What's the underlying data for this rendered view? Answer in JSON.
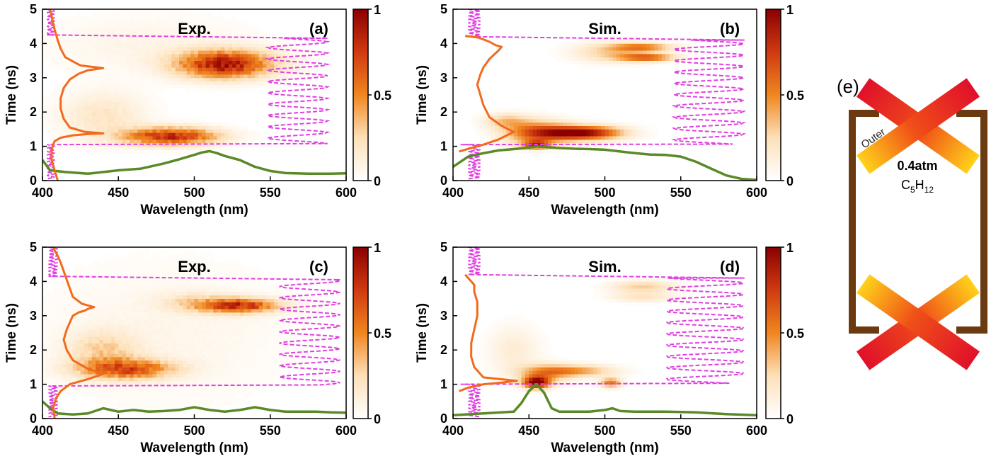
{
  "colors": {
    "heat_low": "#ffffff",
    "heat_mid": "#f0861f",
    "heat_high": "#8b0000",
    "vertical_profile": "#f26a1b",
    "spectrum_line": "#5a8a28",
    "dashed_profile": "#e040e0",
    "box_wall": "#6b3a10",
    "beam_red": "#e0102a",
    "beam_yellow": "#ffd21a"
  },
  "axes": {
    "xlabel": "Wavelength (nm)",
    "ylabel": "Time (ns)",
    "x_ticks": [
      "400",
      "450",
      "500",
      "550",
      "600"
    ],
    "y_ticks": [
      "0",
      "1",
      "2",
      "3",
      "4",
      "5"
    ],
    "colorbar_ticks": [
      "0",
      "0.5",
      "1"
    ]
  },
  "diagram": {
    "label": "(e)",
    "pressure": "0.4atm",
    "gas_main": "C",
    "gas_sub1": "5",
    "gas_mid": "H",
    "gas_sub2": "12",
    "beam_label": "Outer"
  },
  "chart_data": [
    {
      "type": "heatmap",
      "panel": "(a)",
      "title": "Exp.",
      "xlabel": "Wavelength (nm)",
      "ylabel": "Time (ns)",
      "xlim": [
        400,
        600
      ],
      "ylim": [
        0,
        5
      ],
      "colorbar": {
        "range": [
          0,
          1
        ],
        "ticks": [
          0,
          0.5,
          1
        ]
      },
      "blobs": [
        {
          "x": 485,
          "y": 1.3,
          "sx": 22,
          "sy": 0.18,
          "v": 0.8
        },
        {
          "x": 520,
          "y": 3.4,
          "sx": 22,
          "sy": 0.28,
          "v": 0.9
        },
        {
          "x": 440,
          "y": 1.9,
          "sx": 20,
          "sy": 0.5,
          "v": 0.2
        },
        {
          "x": 470,
          "y": 4.0,
          "sx": 50,
          "sy": 0.6,
          "v": 0.08
        }
      ],
      "noise": 0.3,
      "vertical_profile": {
        "x": [
          410,
          408,
          406,
          406,
          407,
          408,
          412,
          420,
          430,
          440,
          428,
          418,
          414,
          412,
          412,
          414,
          418,
          424,
          430,
          440,
          425,
          415,
          412,
          410,
          408,
          407,
          406,
          405
        ],
        "y": [
          0.0,
          0.3,
          0.6,
          0.9,
          1.05,
          1.15,
          1.25,
          1.32,
          1.36,
          1.38,
          1.42,
          1.55,
          1.8,
          2.1,
          2.4,
          2.7,
          2.95,
          3.12,
          3.22,
          3.28,
          3.36,
          3.6,
          3.85,
          4.1,
          4.4,
          4.6,
          4.8,
          5.0
        ]
      },
      "spectrum": {
        "x": [
          400,
          405,
          415,
          430,
          450,
          465,
          480,
          490,
          500,
          505,
          510,
          515,
          520,
          530,
          540,
          550,
          560,
          575,
          590,
          600
        ],
        "y": [
          0.6,
          0.3,
          0.25,
          0.2,
          0.3,
          0.35,
          0.5,
          0.62,
          0.75,
          0.82,
          0.86,
          0.8,
          0.72,
          0.6,
          0.4,
          0.28,
          0.22,
          0.2,
          0.2,
          0.21
        ]
      },
      "dashed_profile": {
        "edges": [
          403,
          408
        ],
        "baseline_time": 1.05,
        "upper_time": 4.25,
        "ripple_low": 548,
        "ripple_high": 588,
        "ripple_period": 0.33,
        "ripple_phase": 0.0
      }
    },
    {
      "type": "heatmap",
      "panel": "(b)",
      "title": "Sim.",
      "xlabel": "Wavelength (nm)",
      "ylabel": "Time (ns)",
      "xlim": [
        400,
        600
      ],
      "ylim": [
        0,
        5
      ],
      "colorbar": {
        "range": [
          0,
          1
        ],
        "ticks": [
          0,
          0.5,
          1
        ]
      },
      "blobs": [
        {
          "x": 485,
          "y": 1.4,
          "sx": 18,
          "sy": 0.14,
          "v": 1.0
        },
        {
          "x": 455,
          "y": 1.4,
          "sx": 15,
          "sy": 0.25,
          "v": 0.6
        },
        {
          "x": 455,
          "y": 1.05,
          "sx": 6,
          "sy": 0.08,
          "v": 0.7
        },
        {
          "x": 435,
          "y": 1.75,
          "sx": 10,
          "sy": 0.15,
          "v": 0.3
        },
        {
          "x": 525,
          "y": 3.9,
          "sx": 14,
          "sy": 0.08,
          "v": 0.5
        },
        {
          "x": 528,
          "y": 3.6,
          "sx": 13,
          "sy": 0.08,
          "v": 0.6
        },
        {
          "x": 505,
          "y": 3.75,
          "sx": 18,
          "sy": 0.2,
          "v": 0.3
        }
      ],
      "noise": 0,
      "vertical_profile": {
        "x": [
          404,
          412,
          420,
          430,
          440,
          432,
          424,
          420,
          418,
          416,
          418,
          420,
          424,
          430,
          432,
          428,
          424,
          420,
          416,
          412,
          408
        ],
        "y": [
          0.85,
          0.95,
          1.05,
          1.2,
          1.42,
          1.6,
          1.85,
          2.2,
          2.5,
          2.8,
          3.1,
          3.3,
          3.55,
          3.8,
          3.9,
          3.95,
          4.05,
          4.12,
          4.18,
          4.2,
          4.22
        ]
      },
      "spectrum": {
        "x": [
          400,
          410,
          420,
          430,
          440,
          450,
          455,
          460,
          470,
          480,
          490,
          500,
          510,
          520,
          530,
          540,
          550,
          560,
          570,
          580,
          590,
          600
        ],
        "y": [
          0.4,
          0.7,
          0.8,
          0.88,
          0.92,
          0.96,
          1.0,
          0.98,
          0.95,
          0.93,
          0.92,
          0.9,
          0.85,
          0.8,
          0.76,
          0.75,
          0.7,
          0.55,
          0.35,
          0.15,
          0.05,
          0.02
        ]
      },
      "dashed_profile": {
        "edges": [
          410,
          418
        ],
        "baseline_time": 1.05,
        "upper_time": 4.2,
        "ripple_low": 545,
        "ripple_high": 592,
        "ripple_period": 0.33,
        "ripple_phase": 1.0
      }
    },
    {
      "type": "heatmap",
      "panel": "(c)",
      "title": "Exp.",
      "xlabel": "Wavelength (nm)",
      "ylabel": "Time (ns)",
      "xlim": [
        400,
        600
      ],
      "ylim": [
        0,
        5
      ],
      "colorbar": {
        "range": [
          0,
          1
        ],
        "ticks": [
          0,
          0.5,
          1
        ]
      },
      "blobs": [
        {
          "x": 455,
          "y": 1.45,
          "sx": 22,
          "sy": 0.2,
          "v": 0.65
        },
        {
          "x": 440,
          "y": 2.0,
          "sx": 16,
          "sy": 0.4,
          "v": 0.25
        },
        {
          "x": 530,
          "y": 3.3,
          "sx": 18,
          "sy": 0.15,
          "v": 0.75
        },
        {
          "x": 500,
          "y": 3.4,
          "sx": 16,
          "sy": 0.2,
          "v": 0.2
        },
        {
          "x": 480,
          "y": 2.5,
          "sx": 60,
          "sy": 1.5,
          "v": 0.07
        }
      ],
      "noise": 0.35,
      "vertical_profile": {
        "x": [
          408,
          407,
          409,
          412,
          418,
          430,
          440,
          430,
          420,
          416,
          414,
          416,
          418,
          420,
          424,
          428,
          430,
          434,
          426,
          420,
          418,
          416,
          414,
          412,
          410,
          408,
          407
        ],
        "y": [
          0.0,
          0.3,
          0.6,
          0.8,
          1.0,
          1.15,
          1.3,
          1.45,
          1.7,
          2.0,
          2.3,
          2.6,
          2.8,
          3.0,
          3.1,
          3.15,
          3.2,
          3.25,
          3.35,
          3.55,
          3.8,
          4.05,
          4.3,
          4.55,
          4.75,
          4.9,
          5.0
        ]
      },
      "spectrum": {
        "x": [
          400,
          405,
          410,
          420,
          430,
          440,
          450,
          460,
          470,
          480,
          490,
          500,
          510,
          520,
          530,
          540,
          550,
          560,
          570,
          580,
          590,
          600
        ],
        "y": [
          0.5,
          0.3,
          0.15,
          0.12,
          0.15,
          0.3,
          0.2,
          0.25,
          0.2,
          0.22,
          0.25,
          0.33,
          0.25,
          0.2,
          0.25,
          0.33,
          0.25,
          0.2,
          0.2,
          0.2,
          0.18,
          0.17
        ]
      },
      "dashed_profile": {
        "edges": [
          404,
          410
        ],
        "baseline_time": 0.95,
        "upper_time": 4.15,
        "ripple_low": 556,
        "ripple_high": 596,
        "ripple_period": 0.33,
        "ripple_phase": 0.5
      }
    },
    {
      "type": "heatmap",
      "panel": "(d)",
      "title": "Sim.",
      "xlabel": "Wavelength (nm)",
      "ylabel": "Time (ns)",
      "xlim": [
        400,
        600
      ],
      "ylim": [
        0,
        5
      ],
      "colorbar": {
        "range": [
          0,
          1
        ],
        "ticks": [
          0,
          0.5,
          1
        ]
      },
      "blobs": [
        {
          "x": 455,
          "y": 1.05,
          "sx": 6,
          "sy": 0.12,
          "v": 1.0
        },
        {
          "x": 504,
          "y": 1.05,
          "sx": 5,
          "sy": 0.1,
          "v": 0.55
        },
        {
          "x": 480,
          "y": 1.4,
          "sx": 18,
          "sy": 0.12,
          "v": 0.45
        },
        {
          "x": 460,
          "y": 1.3,
          "sx": 12,
          "sy": 0.2,
          "v": 0.35
        },
        {
          "x": 440,
          "y": 2.0,
          "sx": 12,
          "sy": 0.5,
          "v": 0.15
        },
        {
          "x": 525,
          "y": 3.85,
          "sx": 15,
          "sy": 0.12,
          "v": 0.3
        },
        {
          "x": 525,
          "y": 3.55,
          "sx": 15,
          "sy": 0.1,
          "v": 0.2
        }
      ],
      "noise": 0,
      "vertical_profile": {
        "x": [
          404,
          410,
          420,
          432,
          442,
          420,
          414,
          412,
          412,
          414,
          416,
          416,
          414,
          414,
          412,
          410,
          408
        ],
        "y": [
          0.8,
          0.9,
          1.0,
          1.05,
          1.1,
          1.2,
          1.5,
          1.8,
          2.2,
          2.6,
          3.0,
          3.4,
          3.7,
          3.9,
          4.0,
          4.1,
          4.2
        ]
      },
      "spectrum": {
        "x": [
          400,
          420,
          440,
          445,
          450,
          455,
          460,
          465,
          470,
          490,
          500,
          505,
          510,
          520,
          540,
          560,
          580,
          600
        ],
        "y": [
          0.1,
          0.15,
          0.2,
          0.45,
          0.8,
          1.0,
          0.75,
          0.3,
          0.2,
          0.2,
          0.25,
          0.3,
          0.22,
          0.2,
          0.2,
          0.18,
          0.13,
          0.1
        ]
      },
      "dashed_profile": {
        "edges": [
          410,
          418
        ],
        "baseline_time": 1.0,
        "upper_time": 4.2,
        "ripple_low": 540,
        "ripple_high": 592,
        "ripple_period": 0.33,
        "ripple_phase": 1.7
      }
    }
  ]
}
